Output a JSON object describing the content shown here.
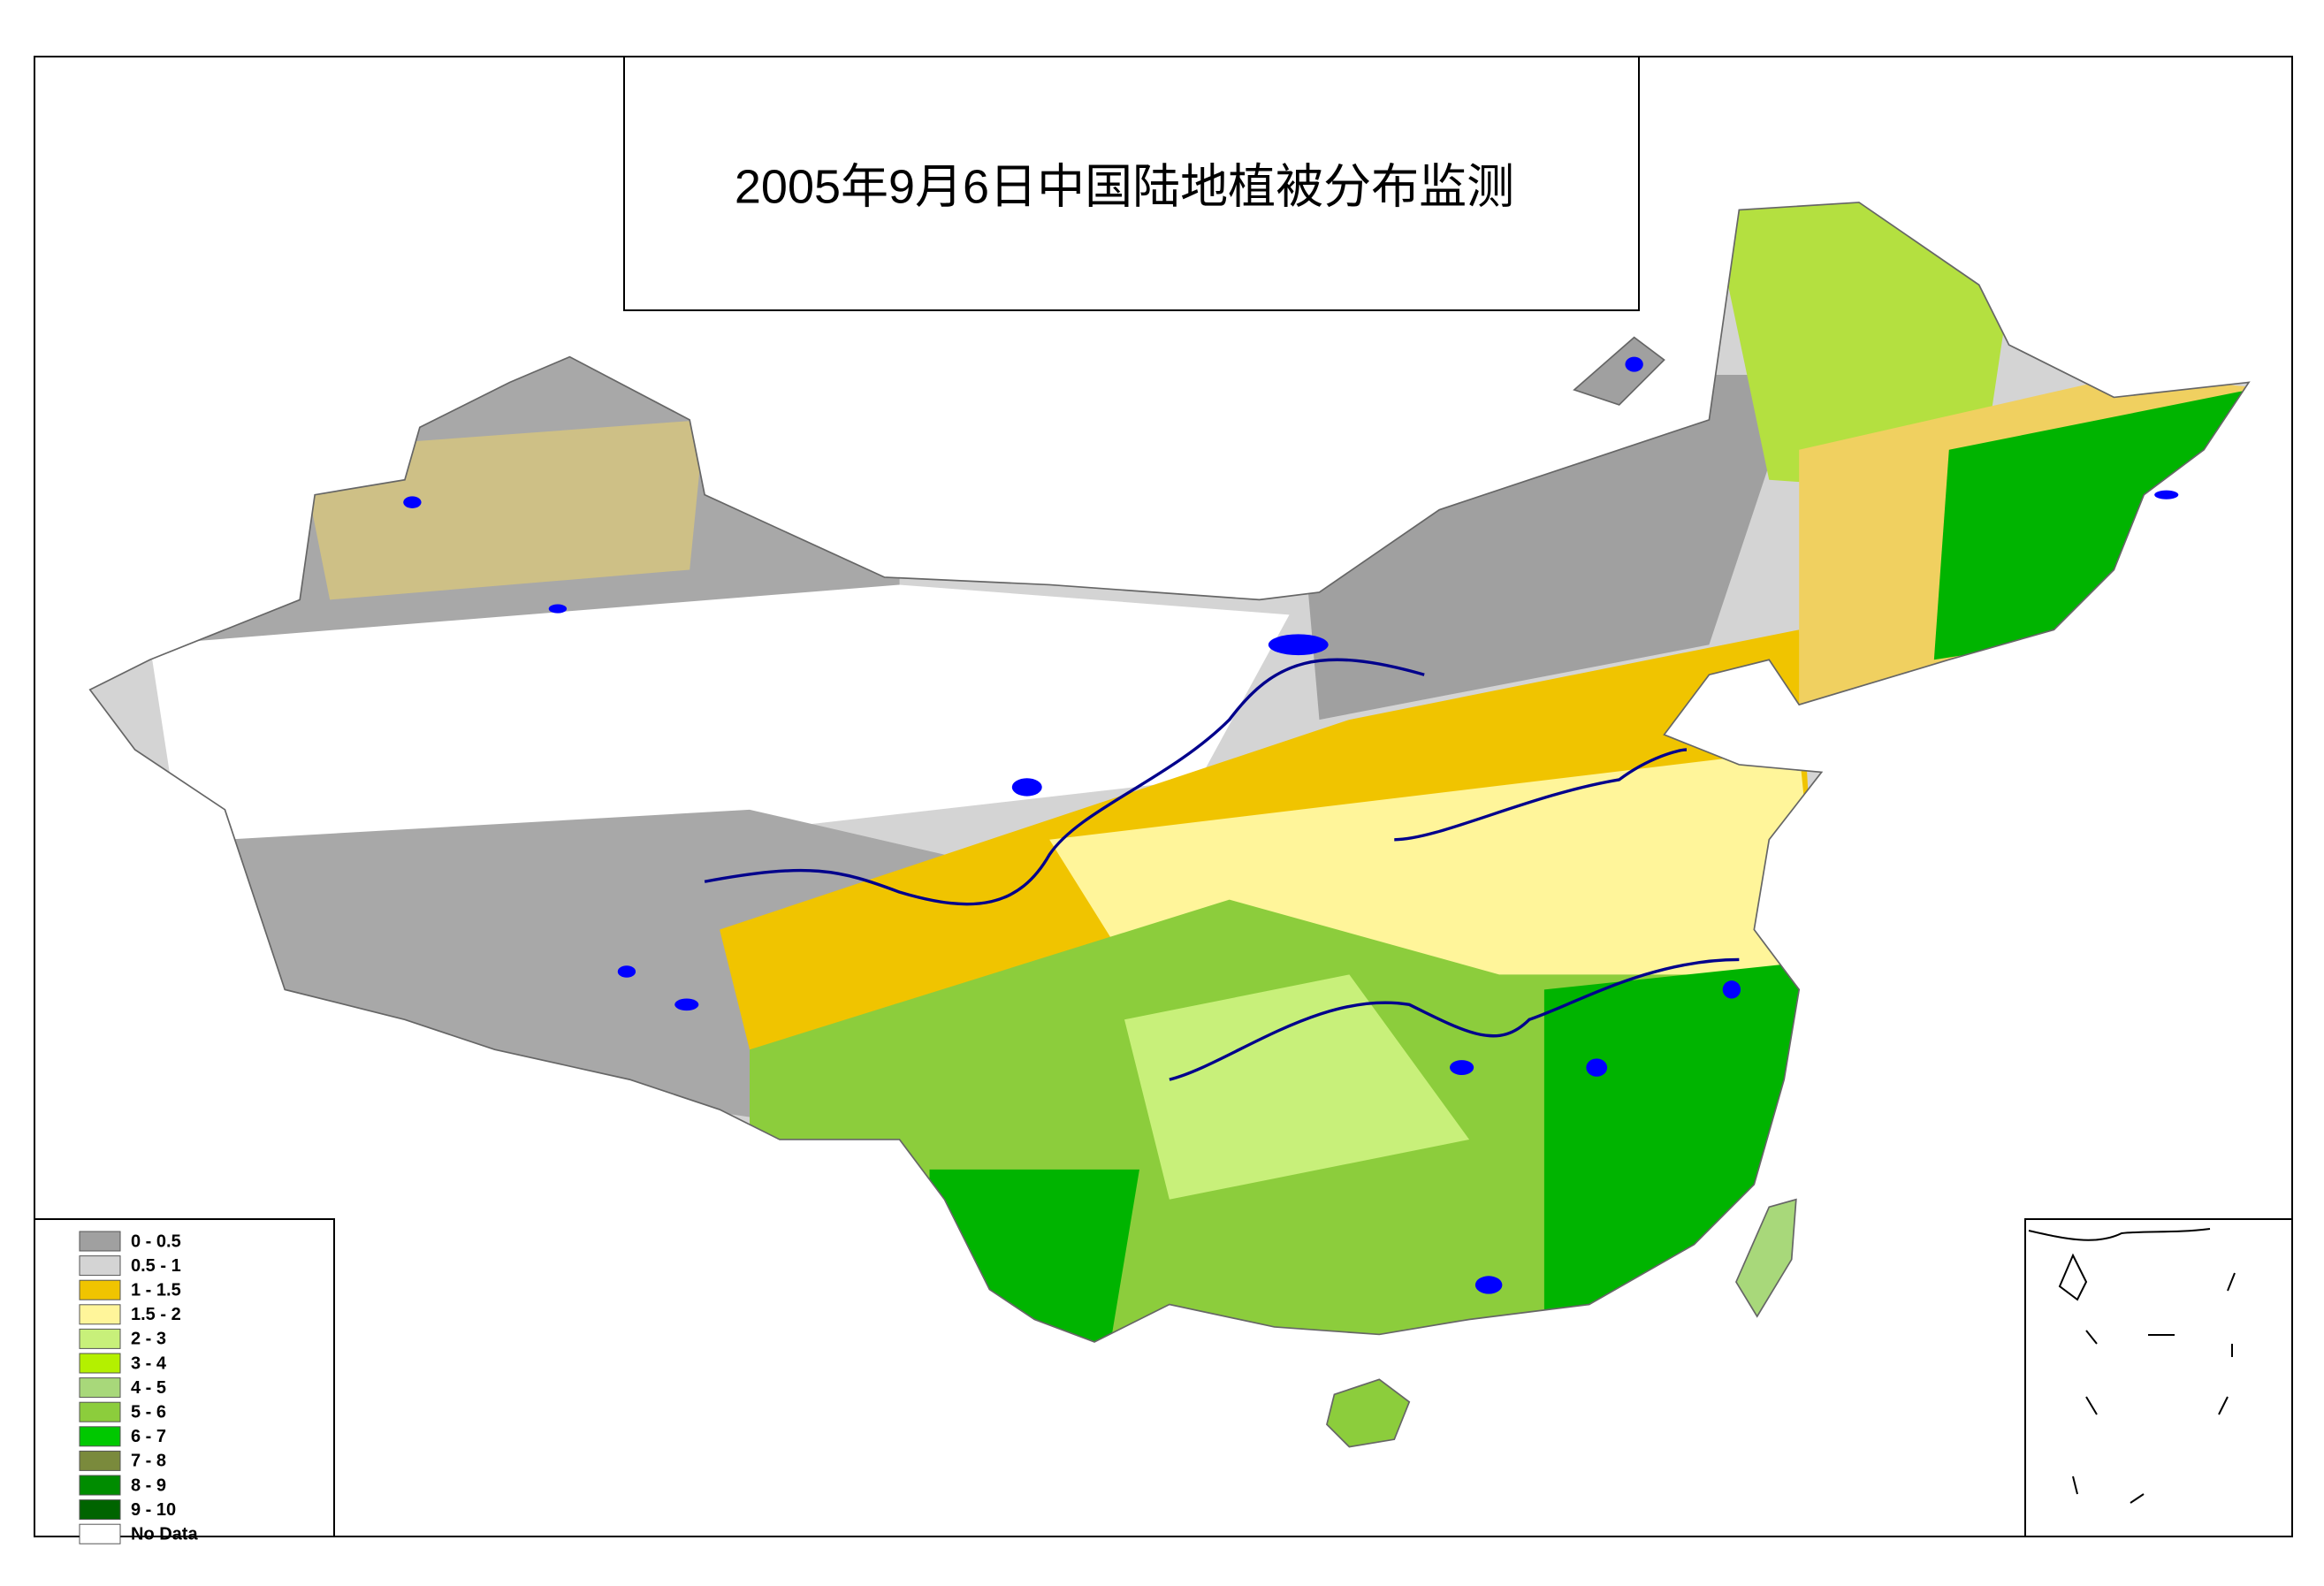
{
  "title": "2005年9月6日中国陆地植被分布监测",
  "legend": [
    {
      "label": "0 - 0.5",
      "color": "#a0a0a0"
    },
    {
      "label": "0.5 - 1",
      "color": "#d4d4d4"
    },
    {
      "label": "1 - 1.5",
      "color": "#f0c400"
    },
    {
      "label": "1.5 - 2",
      "color": "#fff59a"
    },
    {
      "label": "2 - 3",
      "color": "#c8f07a"
    },
    {
      "label": "3 - 4",
      "color": "#b4f000"
    },
    {
      "label": "4 - 5",
      "color": "#a8d87a"
    },
    {
      "label": "5 - 6",
      "color": "#8ccd3c"
    },
    {
      "label": "6 - 7",
      "color": "#00c800"
    },
    {
      "label": "7 - 8",
      "color": "#7a8a3c"
    },
    {
      "label": "8 - 9",
      "color": "#008c00"
    },
    {
      "label": "9 - 10",
      "color": "#006400"
    },
    {
      "label": "No Data",
      "color": "#ffffff"
    }
  ]
}
